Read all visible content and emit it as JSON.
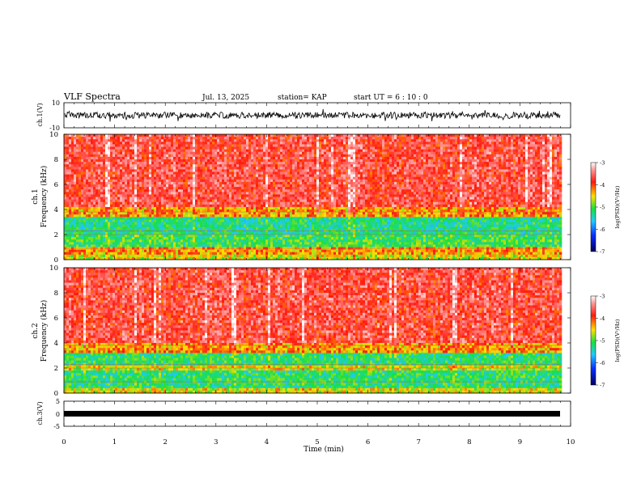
{
  "header": {
    "title": "VLF Spectra",
    "date": "Jul. 13, 2025",
    "station": "station= KAP",
    "start": "start UT = 6 : 10 : 0"
  },
  "chart_data": [
    {
      "type": "line",
      "panel": "ch1-waveform",
      "ylabel": "ch.1(V)",
      "ylim": [
        -10,
        10
      ],
      "yticks": [
        "10",
        "-10"
      ],
      "xlim": [
        0,
        10
      ],
      "series": [
        {
          "name": "",
          "description_values": "noisy waveform, roughly -3 to +3 V, data ends near 9.8 min"
        }
      ]
    },
    {
      "type": "heatmap",
      "panel": "ch1-spectrogram",
      "ylabel": "ch.1\nFrequency (kHz)",
      "ylim": [
        0,
        10
      ],
      "yticks": [
        "0",
        "2",
        "4",
        "6",
        "8",
        "10"
      ],
      "xlim": [
        0,
        10
      ],
      "colorbar": {
        "label": "log(PSD)(V²/Hz)",
        "ticks": [
          "-3",
          "-4",
          "-5",
          "-6",
          "-7"
        ],
        "range": [
          -7,
          -3
        ]
      },
      "bands": [
        {
          "from_khz": 0.0,
          "to_khz": 0.5,
          "level": -4.6
        },
        {
          "from_khz": 0.5,
          "to_khz": 1.0,
          "level": -4.3
        },
        {
          "from_khz": 1.0,
          "to_khz": 2.0,
          "level": -5.1
        },
        {
          "from_khz": 2.0,
          "to_khz": 3.5,
          "level": -5.3
        },
        {
          "from_khz": 3.5,
          "to_khz": 4.2,
          "level": -4.3
        },
        {
          "from_khz": 4.2,
          "to_khz": 10.0,
          "level": -3.7
        }
      ]
    },
    {
      "type": "heatmap",
      "panel": "ch2-spectrogram",
      "ylabel": "ch.2\nFrequency (kHz)",
      "ylim": [
        0,
        10
      ],
      "yticks": [
        "0",
        "2",
        "4",
        "6",
        "8",
        "10"
      ],
      "xlim": [
        0,
        10
      ],
      "colorbar": {
        "label": "log(PSD)(V²/Hz)",
        "ticks": [
          "-3",
          "-4",
          "-5",
          "-6",
          "-7"
        ],
        "range": [
          -7,
          -3
        ]
      },
      "bands": [
        {
          "from_khz": 0.0,
          "to_khz": 0.5,
          "level": -4.6
        },
        {
          "from_khz": 0.5,
          "to_khz": 1.8,
          "level": -5.2
        },
        {
          "from_khz": 1.8,
          "to_khz": 2.3,
          "level": -4.6
        },
        {
          "from_khz": 2.3,
          "to_khz": 3.3,
          "level": -5.2
        },
        {
          "from_khz": 3.3,
          "to_khz": 4.0,
          "level": -4.3
        },
        {
          "from_khz": 4.0,
          "to_khz": 10.0,
          "level": -3.7
        }
      ]
    },
    {
      "type": "line",
      "panel": "ch3-waveform",
      "ylabel": "ch.3(V)",
      "ylim": [
        -5,
        5
      ],
      "yticks": [
        "5",
        "0",
        "-5"
      ],
      "xlim": [
        0,
        10
      ],
      "xlabel": "Time (min)",
      "xticks": [
        "0",
        "1",
        "2",
        "3",
        "4",
        "5",
        "6",
        "7",
        "8",
        "9",
        "10"
      ],
      "series": [
        {
          "name": "",
          "description_values": "near-constant band about -1.5 to -0.5 V, data ends near 9.8 min"
        }
      ]
    }
  ],
  "colors": {
    "red": "#ff2a1a",
    "yellow": "#ffe000",
    "green": "#18e040",
    "cyan": "#22c8ff",
    "blue": "#0a2cff",
    "navy": "#000070"
  }
}
